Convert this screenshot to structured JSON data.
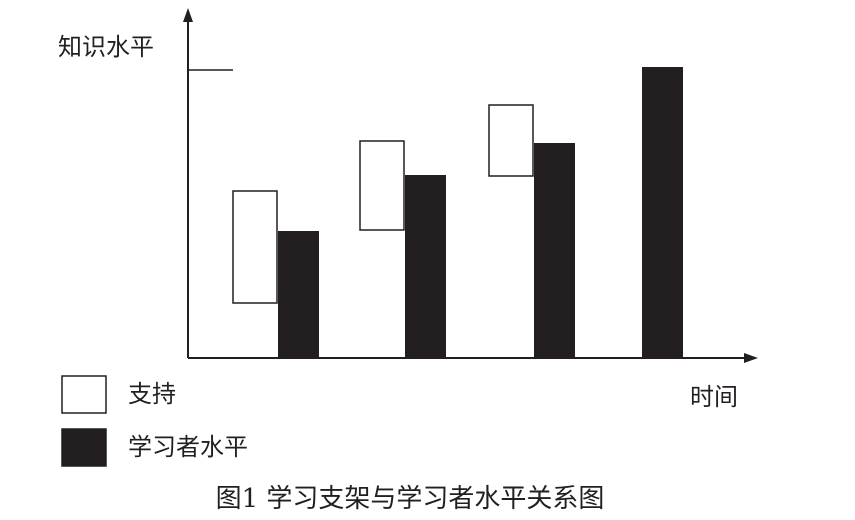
{
  "chart_data": {
    "type": "bar",
    "y_label": "知识水平",
    "x_label": "时间",
    "caption": "图1  学习支架与学习者水平关系图",
    "ylim": [
      0,
      346
    ],
    "series": [
      {
        "name": "支持",
        "color": "#ffffff",
        "values": [
          [
            55,
            167
          ],
          [
            128,
            217
          ],
          [
            182,
            253
          ],
          null
        ]
      },
      {
        "name": "学习者水平",
        "color": "#231f20",
        "values": [
          127,
          183,
          215,
          291
        ]
      }
    ]
  }
}
